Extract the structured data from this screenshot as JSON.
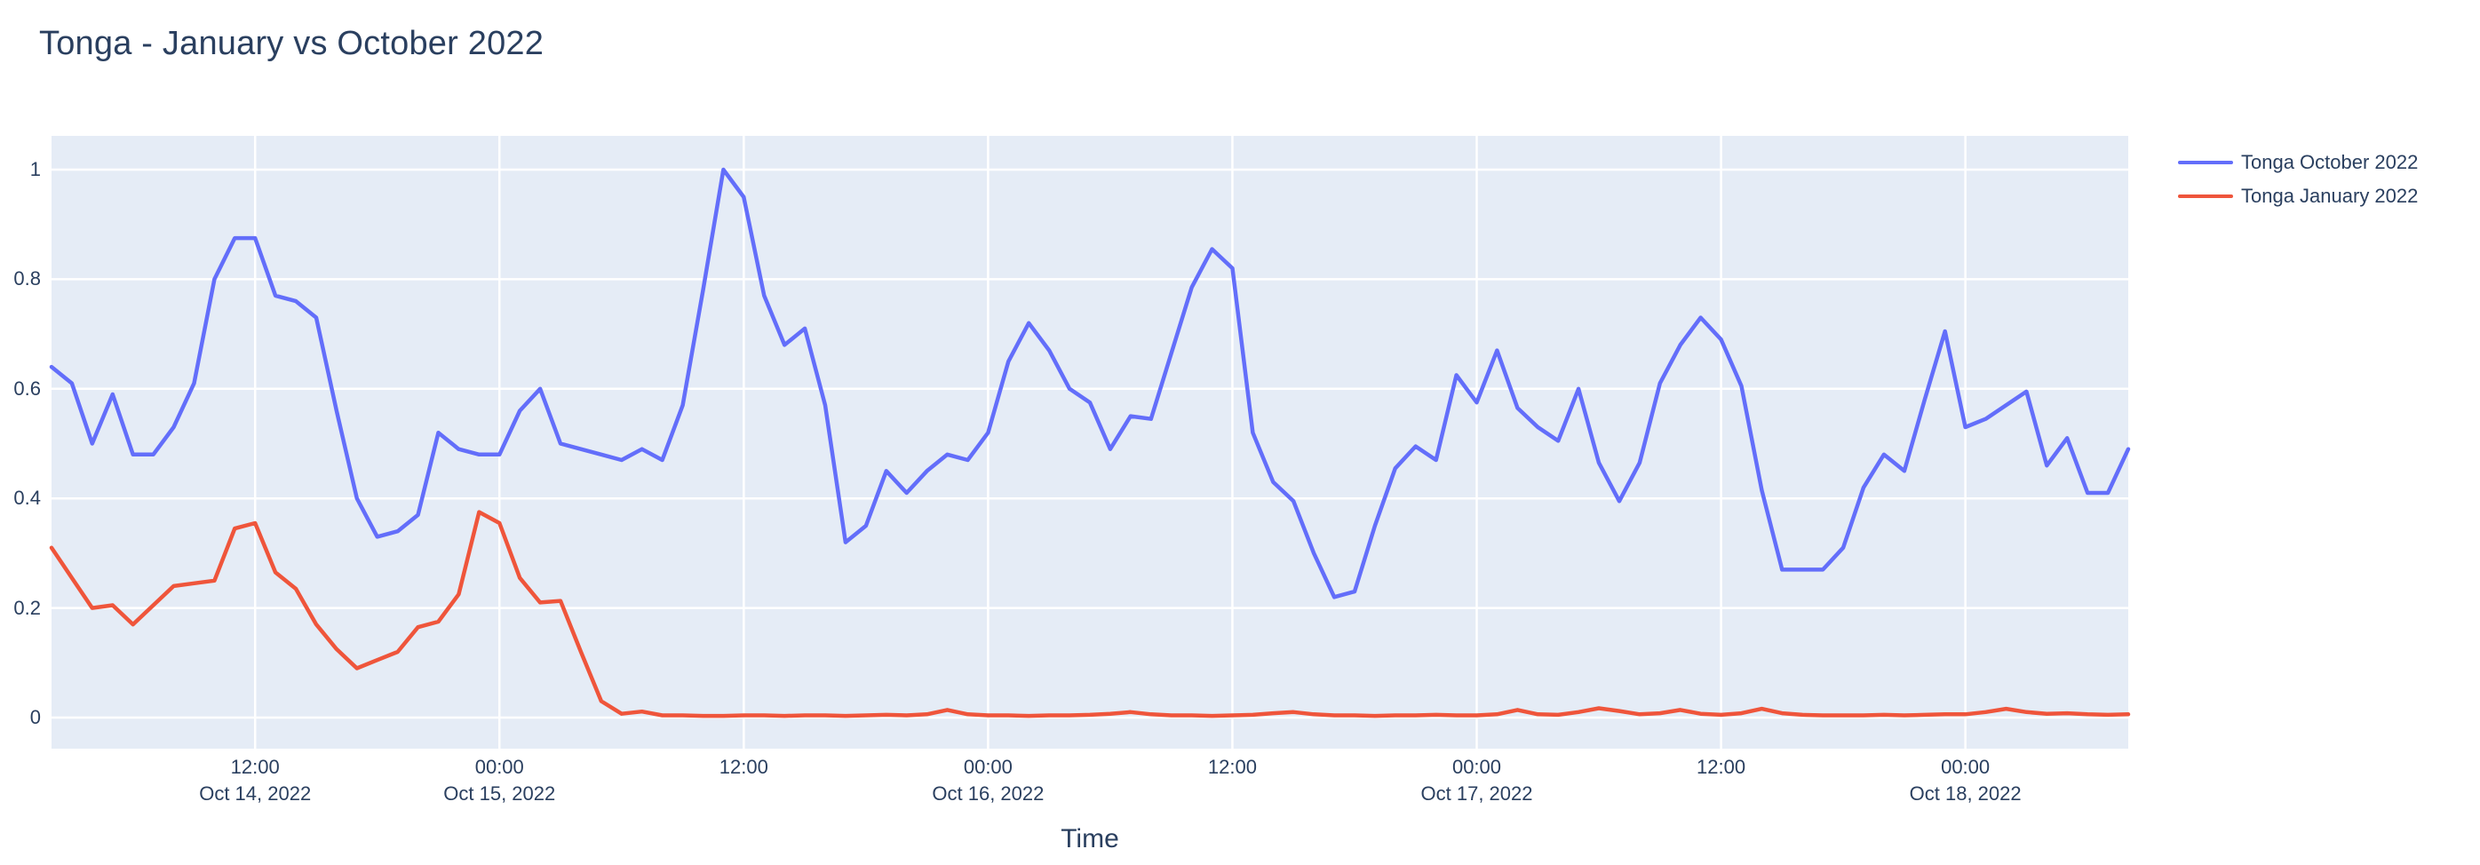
{
  "title": "Tonga - January vs October 2022",
  "x_axis": {
    "label": "Time",
    "ticks": [
      {
        "h": 12,
        "time": "12:00",
        "date": "Oct 14, 2022"
      },
      {
        "h": 24,
        "time": "00:00",
        "date": "Oct 15, 2022"
      },
      {
        "h": 36,
        "time": "12:00",
        "date": ""
      },
      {
        "h": 48,
        "time": "00:00",
        "date": "Oct 16, 2022"
      },
      {
        "h": 60,
        "time": "12:00",
        "date": ""
      },
      {
        "h": 72,
        "time": "00:00",
        "date": "Oct 17, 2022"
      },
      {
        "h": 84,
        "time": "12:00",
        "date": ""
      },
      {
        "h": 96,
        "time": "00:00",
        "date": "Oct 18, 2022"
      }
    ]
  },
  "y_axis": {
    "ticks": [
      {
        "v": 0,
        "label": "0"
      },
      {
        "v": 0.2,
        "label": "0.2"
      },
      {
        "v": 0.4,
        "label": "0.4"
      },
      {
        "v": 0.6,
        "label": "0.6"
      },
      {
        "v": 0.8,
        "label": "0.8"
      },
      {
        "v": 1,
        "label": "1"
      }
    ]
  },
  "legend": {
    "items": [
      {
        "label": "Tonga October 2022",
        "color": "#636EFA"
      },
      {
        "label": "Tonga January 2022",
        "color": "#EF553B"
      }
    ]
  },
  "colors": {
    "text": "#2a3f5f",
    "plot_bg": "#E5ECF6",
    "grid": "#FFFFFF",
    "paper_bg": "#FFFFFF",
    "series_october": "#636EFA",
    "series_january": "#EF553B"
  },
  "chart_data": {
    "type": "line",
    "title": "Tonga - January vs October 2022",
    "xlabel": "Time",
    "ylabel": "",
    "x_unit": "hours after Oct 14, 2022 00:00",
    "xlim": [
      2,
      104
    ],
    "ylim": [
      -0.055,
      1.062
    ],
    "grid": true,
    "legend_position": "top-right",
    "x": [
      2,
      3,
      4,
      5,
      6,
      7,
      8,
      9,
      10,
      11,
      12,
      13,
      14,
      15,
      16,
      17,
      18,
      19,
      20,
      21,
      22,
      23,
      24,
      25,
      26,
      27,
      28,
      29,
      30,
      31,
      32,
      33,
      34,
      35,
      36,
      37,
      38,
      39,
      40,
      41,
      42,
      43,
      44,
      45,
      46,
      47,
      48,
      49,
      50,
      51,
      52,
      53,
      54,
      55,
      56,
      57,
      58,
      59,
      60,
      61,
      62,
      63,
      64,
      65,
      66,
      67,
      68,
      69,
      70,
      71,
      72,
      73,
      74,
      75,
      76,
      77,
      78,
      79,
      80,
      81,
      82,
      83,
      84,
      85,
      86,
      87,
      88,
      89,
      90,
      91,
      92,
      93,
      94,
      95,
      96,
      97,
      98,
      99,
      100,
      101,
      102,
      103,
      104
    ],
    "series": [
      {
        "name": "Tonga October 2022",
        "color": "#636EFA",
        "values": [
          0.64,
          0.61,
          0.5,
          0.59,
          0.48,
          0.48,
          0.53,
          0.61,
          0.8,
          0.875,
          0.875,
          0.77,
          0.76,
          0.73,
          0.56,
          0.4,
          0.33,
          0.34,
          0.37,
          0.52,
          0.49,
          0.48,
          0.48,
          0.56,
          0.6,
          0.5,
          0.49,
          0.48,
          0.47,
          0.49,
          0.47,
          0.57,
          0.78,
          1.0,
          0.95,
          0.77,
          0.68,
          0.71,
          0.57,
          0.32,
          0.35,
          0.45,
          0.41,
          0.45,
          0.48,
          0.47,
          0.52,
          0.65,
          0.72,
          0.67,
          0.6,
          0.575,
          0.49,
          0.55,
          0.545,
          0.665,
          0.785,
          0.855,
          0.82,
          0.52,
          0.43,
          0.395,
          0.3,
          0.22,
          0.23,
          0.35,
          0.455,
          0.495,
          0.47,
          0.625,
          0.575,
          0.67,
          0.565,
          0.53,
          0.505,
          0.6,
          0.465,
          0.395,
          0.465,
          0.61,
          0.68,
          0.73,
          0.69,
          0.605,
          0.415,
          0.27,
          0.27,
          0.27,
          0.31,
          0.42,
          0.48,
          0.45,
          0.58,
          0.705,
          0.53,
          0.545,
          0.57,
          0.595,
          0.46,
          0.51,
          0.41,
          0.41,
          0.49
        ]
      },
      {
        "name": "Tonga January 2022",
        "color": "#EF553B",
        "values": [
          0.31,
          0.255,
          0.2,
          0.205,
          0.17,
          0.205,
          0.24,
          0.245,
          0.25,
          0.345,
          0.355,
          0.265,
          0.235,
          0.17,
          0.125,
          0.09,
          0.105,
          0.12,
          0.165,
          0.175,
          0.225,
          0.375,
          0.355,
          0.255,
          0.21,
          0.213,
          0.12,
          0.03,
          0.007,
          0.011,
          0.004,
          0.004,
          0.003,
          0.003,
          0.004,
          0.004,
          0.003,
          0.004,
          0.004,
          0.003,
          0.004,
          0.005,
          0.004,
          0.006,
          0.014,
          0.006,
          0.004,
          0.004,
          0.003,
          0.004,
          0.004,
          0.005,
          0.007,
          0.01,
          0.006,
          0.004,
          0.004,
          0.003,
          0.004,
          0.005,
          0.008,
          0.01,
          0.006,
          0.004,
          0.004,
          0.003,
          0.004,
          0.004,
          0.005,
          0.004,
          0.004,
          0.006,
          0.014,
          0.006,
          0.005,
          0.01,
          0.017,
          0.012,
          0.006,
          0.008,
          0.014,
          0.007,
          0.005,
          0.008,
          0.016,
          0.008,
          0.005,
          0.004,
          0.004,
          0.004,
          0.005,
          0.004,
          0.005,
          0.006,
          0.006,
          0.01,
          0.016,
          0.01,
          0.007,
          0.008,
          0.006,
          0.005,
          0.006
        ]
      }
    ]
  }
}
